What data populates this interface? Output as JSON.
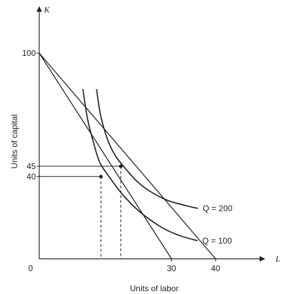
{
  "figure": {
    "axes": {
      "x_symbol": "L",
      "y_symbol": "K",
      "x_title": "Units of labor",
      "y_title": "Units of capital",
      "origin_label": "0"
    },
    "x_ticks": [
      {
        "value": 30,
        "label": "30"
      },
      {
        "value": 40,
        "label": "40"
      }
    ],
    "y_ticks": [
      {
        "value": 100,
        "label": "100"
      },
      {
        "value": 45,
        "label": "45"
      },
      {
        "value": 40,
        "label": "40"
      }
    ],
    "isocost_lines": [
      {
        "from": [
          0,
          100
        ],
        "to": [
          30,
          0
        ]
      },
      {
        "from": [
          0,
          100
        ],
        "to": [
          40,
          0
        ]
      }
    ],
    "isoquants": [
      {
        "label": "Q = 100",
        "points": [
          [
            9.9,
            82.5
          ],
          [
            11.0,
            67.5
          ],
          [
            12.5,
            55.0
          ],
          [
            13.6,
            47.5
          ],
          [
            14.5,
            44.0
          ],
          [
            16.5,
            38.0
          ],
          [
            19.0,
            31.0
          ],
          [
            23.0,
            22.5
          ],
          [
            28.0,
            15.0
          ],
          [
            32.0,
            11.2
          ],
          [
            35.9,
            8.8
          ]
        ]
      },
      {
        "label": "Q = 200",
        "points": [
          [
            13.0,
            82.5
          ],
          [
            13.9,
            70.0
          ],
          [
            15.5,
            58.0
          ],
          [
            17.3,
            50.0
          ],
          [
            19.5,
            44.0
          ],
          [
            22.0,
            38.0
          ],
          [
            25.0,
            33.0
          ],
          [
            29.0,
            28.5
          ],
          [
            33.0,
            26.0
          ],
          [
            36.0,
            24.5
          ]
        ]
      }
    ],
    "tangency_points": [
      {
        "x": 14.0,
        "y": 40.0,
        "y_tick": "40"
      },
      {
        "x": 18.5,
        "y": 45.0,
        "y_tick": "45"
      }
    ],
    "style": {
      "line_color": "#222222",
      "background": "#ffffff"
    }
  }
}
